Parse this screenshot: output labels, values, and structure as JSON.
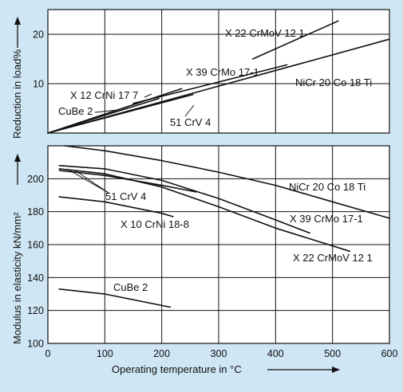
{
  "colors": {
    "background": "#cfe6f4",
    "plot": "#ffffff",
    "ink": "#111111"
  },
  "chart_data": [
    {
      "type": "line",
      "panel": "top",
      "xlabel": "Operating temperature in °C",
      "ylabel": "Reduction in load%",
      "xlim": [
        0,
        600
      ],
      "ylim": [
        0,
        25
      ],
      "xticks": [
        "0",
        "100",
        "200",
        "300",
        "400",
        "500",
        "600"
      ],
      "yticks": [
        {
          "value": 10,
          "label": "10"
        },
        {
          "value": 20,
          "label": "20"
        }
      ],
      "grid": true,
      "series": [
        {
          "name": "X 22 CrMoV 12 1",
          "x": [
            360,
            510
          ],
          "y": [
            15.0,
            22.7
          ]
        },
        {
          "name": "NiCr 20 Co 18 Ti",
          "x": [
            0,
            600
          ],
          "y": [
            0,
            19.0
          ]
        },
        {
          "name": "X 39 CrMo 17-1",
          "x": [
            150,
            420
          ],
          "y": [
            6.0,
            13.8
          ]
        },
        {
          "name": "X 12 CrNi 17 7",
          "x": [
            0,
            235
          ],
          "y": [
            0,
            9.0
          ]
        },
        {
          "name": "CuBe 2",
          "x": [
            0,
            195
          ],
          "y": [
            0,
            7.0
          ]
        },
        {
          "name": "51 CrV 4",
          "x": [
            0,
            255
          ],
          "y": [
            0,
            7.8
          ]
        }
      ]
    },
    {
      "type": "line",
      "panel": "bottom",
      "xlabel": "Operating temperature in °C",
      "ylabel": "Modulus in elasticity kN/mm²",
      "xlim": [
        0,
        600
      ],
      "ylim": [
        100,
        220
      ],
      "xticks": [
        "0",
        "100",
        "200",
        "300",
        "400",
        "500",
        "600"
      ],
      "yticks": [
        {
          "value": 100,
          "label": "100"
        },
        {
          "value": 120,
          "label": "120"
        },
        {
          "value": 140,
          "label": "140"
        },
        {
          "value": 160,
          "label": "160"
        },
        {
          "value": 180,
          "label": "180"
        },
        {
          "value": 200,
          "label": "200"
        }
      ],
      "grid": true,
      "series": [
        {
          "name": "NiCr 20 Co 18 Ti",
          "x": [
            30,
            100,
            200,
            300,
            400,
            500,
            600
          ],
          "y": [
            220,
            217,
            211,
            204,
            196,
            186,
            176
          ]
        },
        {
          "name": "X 39 CrMo 17-1",
          "x": [
            20,
            100,
            200,
            300,
            400,
            460
          ],
          "y": [
            208,
            206,
            199,
            188,
            175,
            167
          ]
        },
        {
          "name": "X 22 CrMoV 12 1",
          "x": [
            20,
            100,
            200,
            300,
            400,
            530
          ],
          "y": [
            206,
            203,
            195,
            183,
            170,
            156
          ]
        },
        {
          "name": "51 CrV 4",
          "x": [
            20,
            100,
            200,
            260
          ],
          "y": [
            205,
            202,
            196,
            192
          ]
        },
        {
          "name": "X 10 CrNi 18-8",
          "x": [
            20,
            100,
            200,
            220
          ],
          "y": [
            189,
            186,
            179,
            177
          ]
        },
        {
          "name": "CuBe 2",
          "x": [
            20,
            100,
            215
          ],
          "y": [
            133,
            130,
            122
          ]
        }
      ]
    }
  ],
  "labels": {
    "top": {
      "x22": "X 22 CrMoV 12 1",
      "nicr": "NiCr 20 Co 18 Ti",
      "x39": "X 39 CrMo 17-1",
      "x12": "X 12 CrNi 17 7",
      "cube": "CuBe 2",
      "crv": "51 CrV 4"
    },
    "bottom": {
      "nicr": "NiCr 20 Co 18 Ti",
      "x39": "X 39 CrMo 17-1",
      "x22": "X 22 CrMoV 12 1",
      "crv": "51 CrV 4",
      "x10": "X 10 CrNi 18-8",
      "cube": "CuBe 2"
    },
    "ylabel_top": "Reduction in load%",
    "ylabel_bottom": "Modulus in elasticity kN/mm²",
    "xlabel": "Operating temperature in °C"
  }
}
